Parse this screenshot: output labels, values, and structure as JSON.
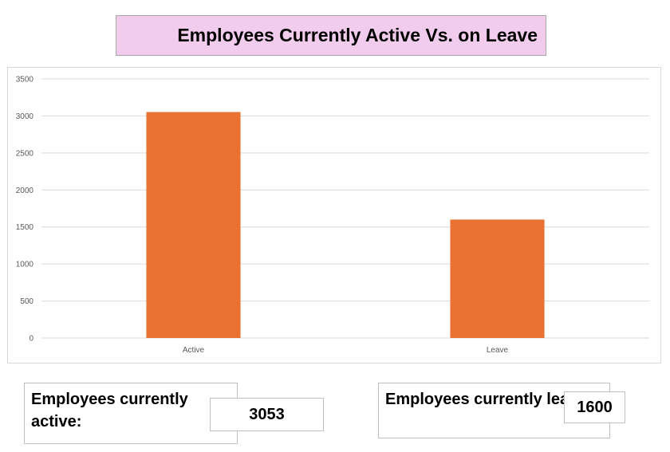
{
  "chart_data": {
    "type": "bar",
    "title": "Employees Currently Active Vs. on Leave",
    "categories": [
      "Active",
      "Leave"
    ],
    "values": [
      3053,
      1600
    ],
    "ylim": [
      0,
      3500
    ],
    "yticks": [
      0,
      500,
      1000,
      1500,
      2000,
      2500,
      3000,
      3500
    ],
    "grid": true,
    "legend": "none",
    "bar_color": "#e97132",
    "xlabel": "",
    "ylabel": ""
  },
  "stats": {
    "active_label": "Employees currently active:",
    "active_value": "3053",
    "leave_label": "Employees currently leave:",
    "leave_value": "1600"
  },
  "colors": {
    "title_background": "#f2ccec",
    "bar": "#e97132"
  }
}
